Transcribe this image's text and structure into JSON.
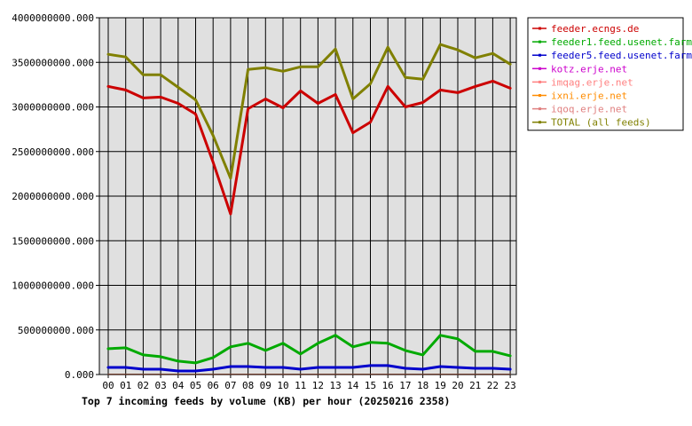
{
  "chart_data": {
    "type": "line",
    "title": "Top 7 incoming feeds by volume (KB) per hour (20250216 2358)",
    "categories": [
      "00",
      "01",
      "02",
      "03",
      "04",
      "05",
      "06",
      "07",
      "08",
      "09",
      "10",
      "11",
      "12",
      "13",
      "14",
      "15",
      "16",
      "17",
      "18",
      "19",
      "20",
      "21",
      "22",
      "23"
    ],
    "ylim": [
      0,
      4000000000
    ],
    "y_tick_values": [
      0,
      500000000,
      1000000000,
      1500000000,
      2000000000,
      2500000000,
      3000000000,
      3500000000,
      4000000000
    ],
    "y_tick_labels": [
      "0.000",
      "500000000.000",
      "1000000000.000",
      "1500000000.000",
      "2000000000.000",
      "2500000000.000",
      "3000000000.000",
      "3500000000.000",
      "4000000000.000"
    ],
    "grid": true,
    "legend_position": "right",
    "plot_background": "#e0e0e0",
    "series": [
      {
        "name": "feeder.ecngs.de",
        "color": "#cc0000",
        "width": 3,
        "values": [
          3230000000,
          3190000000,
          3100000000,
          3110000000,
          3040000000,
          2920000000,
          2380000000,
          1800000000,
          2980000000,
          3090000000,
          2990000000,
          3180000000,
          3040000000,
          3140000000,
          2710000000,
          2830000000,
          3230000000,
          3000000000,
          3050000000,
          3190000000,
          3160000000,
          3230000000,
          3290000000,
          3210000000
        ]
      },
      {
        "name": "feeder1.feed.usenet.farm",
        "color": "#00aa00",
        "width": 3,
        "values": [
          290000000,
          300000000,
          220000000,
          200000000,
          150000000,
          130000000,
          190000000,
          310000000,
          350000000,
          270000000,
          350000000,
          230000000,
          350000000,
          440000000,
          310000000,
          360000000,
          350000000,
          270000000,
          220000000,
          440000000,
          400000000,
          260000000,
          260000000,
          210000000
        ]
      },
      {
        "name": "feeder5.feed.usenet.farm",
        "color": "#0000cc",
        "width": 3,
        "values": [
          80000000,
          80000000,
          60000000,
          60000000,
          40000000,
          40000000,
          60000000,
          90000000,
          90000000,
          80000000,
          80000000,
          60000000,
          80000000,
          80000000,
          80000000,
          100000000,
          100000000,
          70000000,
          60000000,
          90000000,
          80000000,
          70000000,
          70000000,
          60000000
        ]
      },
      {
        "name": "kotz.erje.net",
        "color": "#cc00cc",
        "width": 1.5,
        "values": [
          3000000,
          3000000,
          3000000,
          3000000,
          3000000,
          3000000,
          3000000,
          3000000,
          3000000,
          3000000,
          3000000,
          3000000,
          3000000,
          3000000,
          3000000,
          3000000,
          3000000,
          3000000,
          3000000,
          3000000,
          3000000,
          3000000,
          3000000,
          3000000
        ]
      },
      {
        "name": "imqag.erje.net",
        "color": "#ff8080",
        "width": 1.5,
        "values": [
          2000000,
          2000000,
          2000000,
          2000000,
          2000000,
          2000000,
          2000000,
          2000000,
          2000000,
          2000000,
          2000000,
          2000000,
          2000000,
          2000000,
          2000000,
          2000000,
          2000000,
          2000000,
          2000000,
          2000000,
          2000000,
          2000000,
          2000000,
          2000000
        ]
      },
      {
        "name": "ixni.erje.net",
        "color": "#ff8c00",
        "width": 1.5,
        "values": [
          2000000,
          2000000,
          2000000,
          2000000,
          2000000,
          2000000,
          2000000,
          2000000,
          2000000,
          2000000,
          2000000,
          2000000,
          2000000,
          2000000,
          2000000,
          2000000,
          2000000,
          2000000,
          2000000,
          2000000,
          2000000,
          2000000,
          2000000,
          2000000
        ]
      },
      {
        "name": "iqoq.erje.net",
        "color": "#e08080",
        "width": 1.5,
        "values": [
          1000000,
          1000000,
          1000000,
          1000000,
          1000000,
          1000000,
          1000000,
          1000000,
          1000000,
          1000000,
          1000000,
          1000000,
          1000000,
          1000000,
          1000000,
          1000000,
          1000000,
          1000000,
          1000000,
          1000000,
          1000000,
          1000000,
          1000000,
          1000000
        ]
      },
      {
        "name": "TOTAL (all feeds)",
        "color": "#808000",
        "width": 3,
        "values": [
          3590000000,
          3560000000,
          3360000000,
          3360000000,
          3220000000,
          3080000000,
          2680000000,
          2200000000,
          3420000000,
          3440000000,
          3400000000,
          3450000000,
          3450000000,
          3650000000,
          3090000000,
          3260000000,
          3670000000,
          3330000000,
          3310000000,
          3700000000,
          3640000000,
          3550000000,
          3600000000,
          3480000000
        ]
      }
    ]
  }
}
